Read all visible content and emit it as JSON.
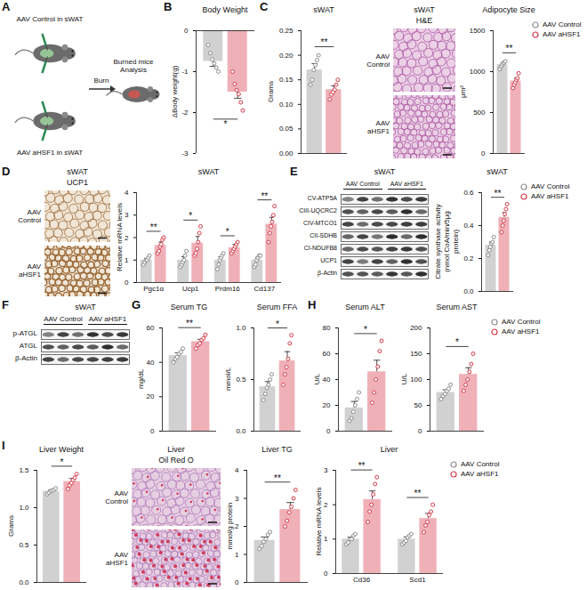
{
  "panel_letters": [
    "A",
    "B",
    "C",
    "D",
    "E",
    "F",
    "G",
    "H",
    "I"
  ],
  "schematic": {
    "top_label": "AAV Control in sWAT",
    "bottom_label": "AAV aHSF1 in sWAT",
    "arrow_label": "Burn",
    "result_label": "Burned mice Analysis"
  },
  "images": [
    {
      "title": "sWAT",
      "stain": "H&E",
      "rows": [
        "AAV Control",
        "AAV aHSF1"
      ]
    },
    {
      "title": "sWAT",
      "stain": "UCP1",
      "rows": [
        "AAV Control",
        "AAV aHSF1"
      ]
    },
    {
      "title": "Liver",
      "stain": "Oil Red O",
      "rows": [
        "AAV Control",
        "AAV aHSF1"
      ]
    }
  ],
  "blots": [
    {
      "title": "sWAT",
      "groups": [
        "AAV Control",
        "AAV aHSF1"
      ],
      "bands": [
        "CV-ATP5A",
        "CIII-UQCRC2",
        "CIV-MTCO1",
        "CII-SDHB",
        "CI-NDUFB8",
        "UCP1",
        "β-Actin"
      ]
    },
    {
      "title": "sWAT",
      "groups": [
        "AAV Control",
        "AAV aHSF1"
      ],
      "bands": [
        "p-ATGL",
        "ATGL",
        "β-Actin"
      ]
    }
  ],
  "chart_data": [
    {
      "type": "bar",
      "title": "Body Weight",
      "ylabel": "ΔBody weight(g)",
      "categories": [
        null
      ],
      "tick_labels": "y",
      "ylim": [
        -3,
        0
      ],
      "yticks": [
        -3,
        -2,
        -1,
        0
      ],
      "significance": [
        "*"
      ],
      "series": [
        {
          "name": "AAV Control",
          "color": "#8c8c8c",
          "marker": "circle",
          "values": [
            -0.75
          ],
          "errors": [
            0.12
          ],
          "points": [
            [
              -0.35,
              -0.55,
              -0.7,
              -0.8,
              -0.9,
              -1.0
            ]
          ]
        },
        {
          "name": "AAV aHSF1",
          "color": "#d63a4a",
          "marker": "circle",
          "values": [
            -1.5
          ],
          "errors": [
            0.15
          ],
          "points": [
            [
              -1.0,
              -1.3,
              -1.45,
              -1.55,
              -1.75,
              -1.95
            ]
          ]
        }
      ]
    },
    {
      "type": "bar",
      "title": "sWAT",
      "ylabel": "Grams",
      "categories": [
        null
      ],
      "tick_labels": "y",
      "ylim": [
        0,
        0.25
      ],
      "yticks": [
        {
          "value": 0,
          "label": "0.00"
        },
        {
          "value": 0.05,
          "label": "0.05"
        },
        {
          "value": 0.1,
          "label": "0.10"
        },
        {
          "value": 0.15,
          "label": "0.15"
        },
        {
          "value": 0.2,
          "label": "0.20"
        },
        {
          "value": 0.25,
          "label": "0.25"
        }
      ],
      "significance": [
        "**"
      ],
      "series": [
        {
          "name": "AAV Control",
          "color": "#8c8c8c",
          "marker": "circle",
          "values": [
            0.17
          ],
          "errors": [
            0.013
          ],
          "points": [
            [
              0.14,
              0.15,
              0.17,
              0.18,
              0.19,
              0.2
            ]
          ]
        },
        {
          "name": "AAV aHSF1",
          "color": "#d63a4a",
          "marker": "circle",
          "values": [
            0.13
          ],
          "errors": [
            0.008
          ],
          "points": [
            [
              0.11,
              0.12,
              0.125,
              0.13,
              0.14,
              0.15
            ]
          ]
        }
      ]
    },
    {
      "type": "bar",
      "title": "Adipocyte Size",
      "ylabel": "μm²",
      "categories": [
        null
      ],
      "tick_labels": "y",
      "legend": "right",
      "ylim": [
        0,
        1500
      ],
      "yticks": [
        0,
        500,
        1000,
        1500
      ],
      "significance": [
        "**"
      ],
      "series": [
        {
          "name": "AAV Control",
          "color": "#8c8c8c",
          "marker": "circle",
          "values": [
            1085
          ],
          "errors": [
            25
          ],
          "points": [
            [
              1030,
              1060,
              1080,
              1100,
              1110,
              1125
            ]
          ]
        },
        {
          "name": "AAV aHSF1",
          "color": "#d63a4a",
          "marker": "circle",
          "values": [
            885
          ],
          "errors": [
            35
          ],
          "points": [
            [
              800,
              840,
              870,
              900,
              920,
              980
            ]
          ]
        }
      ]
    },
    {
      "type": "bar",
      "title": "sWAT",
      "ylabel": "Relative mRNA levels",
      "categories": [
        "Pgc1α",
        "Ucp1",
        "Prdm16",
        "Cd137"
      ],
      "ylim": [
        0,
        4
      ],
      "yticks": [
        0,
        1,
        2,
        3,
        4
      ],
      "significance": [
        "**",
        "*",
        "*",
        "**"
      ],
      "series": [
        {
          "name": "AAV Control",
          "color": "#8c8c8c",
          "marker": "circle",
          "values": [
            1.0,
            1.0,
            1.0,
            1.0
          ],
          "errors": [
            0.08,
            0.15,
            0.15,
            0.12
          ],
          "points": [
            [
              0.8,
              0.9,
              1.0,
              1.0,
              1.1,
              1.2
            ],
            [
              0.7,
              0.8,
              0.9,
              1.0,
              1.2,
              1.4
            ],
            [
              0.6,
              0.8,
              1.0,
              1.1,
              1.2,
              1.3
            ],
            [
              0.7,
              0.8,
              1.0,
              1.1,
              1.2,
              1.2
            ]
          ]
        },
        {
          "name": "AAV aHSF1",
          "color": "#d63a4a",
          "marker": "circle",
          "values": [
            1.65,
            1.75,
            1.55,
            2.6
          ],
          "errors": [
            0.15,
            0.3,
            0.15,
            0.3
          ],
          "points": [
            [
              1.3,
              1.4,
              1.6,
              1.7,
              1.9,
              2.0
            ],
            [
              1.2,
              1.3,
              1.5,
              1.8,
              2.2,
              2.5
            ],
            [
              1.3,
              1.4,
              1.5,
              1.6,
              1.7,
              1.8
            ],
            [
              1.8,
              2.2,
              2.5,
              2.7,
              3.0,
              3.4
            ]
          ]
        }
      ]
    },
    {
      "type": "bar",
      "title": "sWAT",
      "ylabel": "Citrate synthase activity (nmol CoA/min/5μg protein)",
      "categories": [
        null
      ],
      "tick_labels": "y",
      "legend": "right",
      "ylim": [
        0,
        0.6
      ],
      "yticks": [
        {
          "value": 0,
          "label": "0.0"
        },
        {
          "value": 0.2,
          "label": "0.2"
        },
        {
          "value": 0.4,
          "label": "0.4"
        },
        {
          "value": 0.6,
          "label": "0.6"
        }
      ],
      "significance": [
        "**"
      ],
      "series": [
        {
          "name": "AAV Control",
          "color": "#8c8c8c",
          "marker": "circle",
          "values": [
            0.28
          ],
          "errors": [
            0.02
          ],
          "points": [
            [
              0.22,
              0.25,
              0.27,
              0.29,
              0.3,
              0.33
            ]
          ]
        },
        {
          "name": "AAV aHSF1",
          "color": "#d63a4a",
          "marker": "circle",
          "values": [
            0.45
          ],
          "errors": [
            0.03
          ],
          "points": [
            [
              0.36,
              0.4,
              0.43,
              0.47,
              0.5,
              0.53
            ]
          ]
        }
      ]
    },
    {
      "type": "bar",
      "title": "Serum TG",
      "ylabel": "mg/dL",
      "categories": [
        null
      ],
      "tick_labels": "y",
      "ylim": [
        0,
        60
      ],
      "yticks": [
        0,
        20,
        40,
        60
      ],
      "significance": [
        "**"
      ],
      "series": [
        {
          "name": "AAV Control",
          "color": "#8c8c8c",
          "marker": "circle",
          "values": [
            44
          ],
          "errors": [
            1.5
          ],
          "points": [
            [
              40,
              42,
              43,
              45,
              46,
              48
            ]
          ]
        },
        {
          "name": "AAV aHSF1",
          "color": "#d63a4a",
          "marker": "circle",
          "values": [
            52
          ],
          "errors": [
            1.3
          ],
          "points": [
            [
              48,
              50,
              51,
              53,
              54,
              56
            ]
          ]
        }
      ]
    },
    {
      "type": "bar",
      "title": "Serum FFA",
      "ylabel": "mmol/L",
      "categories": [
        null
      ],
      "tick_labels": "y",
      "ylim": [
        0,
        1.0
      ],
      "yticks": [
        {
          "value": 0,
          "label": "0.0"
        },
        {
          "value": 0.5,
          "label": "0.5"
        },
        {
          "value": 1.0,
          "label": "1.0"
        }
      ],
      "significance": [
        "*"
      ],
      "series": [
        {
          "name": "AAV Control",
          "color": "#8c8c8c",
          "marker": "circle",
          "values": [
            0.43
          ],
          "errors": [
            0.05
          ],
          "points": [
            [
              0.3,
              0.36,
              0.42,
              0.45,
              0.5,
              0.55
            ]
          ]
        },
        {
          "name": "AAV aHSF1",
          "color": "#d63a4a",
          "marker": "circle",
          "values": [
            0.68
          ],
          "errors": [
            0.09
          ],
          "points": [
            [
              0.45,
              0.55,
              0.62,
              0.7,
              0.85,
              0.93
            ]
          ]
        }
      ]
    },
    {
      "type": "bar",
      "title": "Serum ALT",
      "ylabel": "U/L",
      "categories": [
        null
      ],
      "tick_labels": "y",
      "ylim": [
        0,
        80
      ],
      "yticks": [
        0,
        20,
        40,
        60,
        80
      ],
      "significance": [
        "*"
      ],
      "series": [
        {
          "name": "AAV Control",
          "color": "#8c8c8c",
          "marker": "circle",
          "values": [
            18
          ],
          "errors": [
            5
          ],
          "points": [
            [
              8,
              10,
              15,
              20,
              25,
              30
            ]
          ]
        },
        {
          "name": "AAV aHSF1",
          "color": "#d63a4a",
          "marker": "circle",
          "values": [
            46
          ],
          "errors": [
            9
          ],
          "points": [
            [
              22,
              30,
              40,
              50,
              62,
              70
            ]
          ]
        }
      ]
    },
    {
      "type": "bar",
      "title": "Serum AST",
      "ylabel": "U/L",
      "categories": [
        null
      ],
      "tick_labels": "y",
      "legend": "right",
      "ylim": [
        0,
        200
      ],
      "yticks": [
        0,
        50,
        100,
        150,
        200
      ],
      "significance": [
        "*"
      ],
      "series": [
        {
          "name": "AAV Control",
          "color": "#8c8c8c",
          "marker": "circle",
          "values": [
            75
          ],
          "errors": [
            5
          ],
          "points": [
            [
              62,
              68,
              72,
              78,
              82,
              90
            ]
          ]
        },
        {
          "name": "AAV aHSF1",
          "color": "#d63a4a",
          "marker": "circle",
          "values": [
            110
          ],
          "errors": [
            13
          ],
          "points": [
            [
              78,
              90,
              100,
              115,
              130,
              150
            ]
          ]
        }
      ]
    },
    {
      "type": "bar",
      "title": "Liver Weight",
      "ylabel": "Grams",
      "categories": [
        null
      ],
      "tick_labels": "y",
      "ylim": [
        0,
        1.5
      ],
      "yticks": [
        {
          "value": 0,
          "label": "0.0"
        },
        {
          "value": 0.5,
          "label": "0.5"
        },
        {
          "value": 1.0,
          "label": "1.0"
        },
        {
          "value": 1.5,
          "label": "1.5"
        }
      ],
      "significance": [
        "*"
      ],
      "series": [
        {
          "name": "AAV Control",
          "color": "#8c8c8c",
          "marker": "circle",
          "values": [
            1.22
          ],
          "errors": [
            0.02
          ],
          "points": [
            [
              1.18,
              1.2,
              1.22,
              1.23,
              1.24,
              1.26
            ]
          ]
        },
        {
          "name": "AAV aHSF1",
          "color": "#d63a4a",
          "marker": "circle",
          "values": [
            1.35
          ],
          "errors": [
            0.04
          ],
          "points": [
            [
              1.25,
              1.3,
              1.33,
              1.37,
              1.4,
              1.45
            ]
          ]
        }
      ]
    },
    {
      "type": "bar",
      "title": "Liver TG",
      "ylabel": "mmol/g protein",
      "categories": [
        null
      ],
      "tick_labels": "y",
      "ylim": [
        0,
        4
      ],
      "yticks": [
        0,
        1,
        2,
        3,
        4
      ],
      "significance": [
        "**"
      ],
      "series": [
        {
          "name": "AAV Control",
          "color": "#8c8c8c",
          "marker": "circle",
          "values": [
            1.5
          ],
          "errors": [
            0.12
          ],
          "points": [
            [
              1.2,
              1.3,
              1.45,
              1.55,
              1.7,
              1.8
            ]
          ]
        },
        {
          "name": "AAV aHSF1",
          "color": "#d63a4a",
          "marker": "circle",
          "values": [
            2.6
          ],
          "errors": [
            0.25
          ],
          "points": [
            [
              2.0,
              2.2,
              2.5,
              2.7,
              3.0,
              3.3
            ]
          ]
        }
      ]
    },
    {
      "type": "bar",
      "title": "Liver",
      "ylabel": "Relative mRNA levels",
      "categories": [
        "Cd36",
        "Scd1"
      ],
      "legend": "right",
      "ylim": [
        0,
        3
      ],
      "yticks": [
        0,
        1,
        2,
        3
      ],
      "significance": [
        "**",
        "**"
      ],
      "series": [
        {
          "name": "AAV Control",
          "color": "#8c8c8c",
          "marker": "circle",
          "values": [
            1.0,
            1.0
          ],
          "errors": [
            0.06,
            0.06
          ],
          "points": [
            [
              0.85,
              0.9,
              1.0,
              1.0,
              1.1,
              1.15
            ],
            [
              0.85,
              0.9,
              0.95,
              1.05,
              1.1,
              1.15
            ]
          ]
        },
        {
          "name": "AAV aHSF1",
          "color": "#d63a4a",
          "marker": "circle",
          "values": [
            2.15,
            1.6
          ],
          "errors": [
            0.25,
            0.15
          ],
          "points": [
            [
              1.5,
              1.8,
              2.0,
              2.3,
              2.6,
              2.8
            ],
            [
              1.2,
              1.4,
              1.5,
              1.7,
              1.8,
              2.0
            ]
          ]
        }
      ]
    }
  ]
}
